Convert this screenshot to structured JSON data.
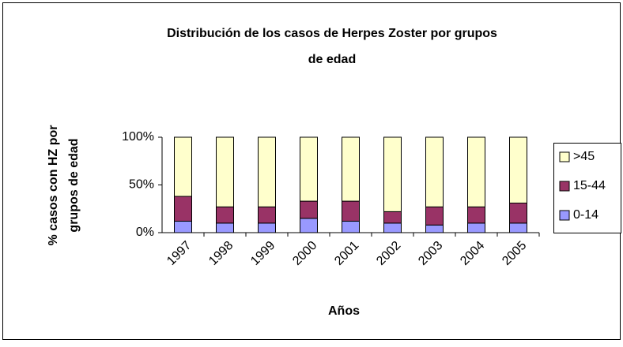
{
  "chart_data": {
    "type": "stacked_bar",
    "title": [
      "Distribución de los casos de Herpes Zoster por grupos",
      "de edad"
    ],
    "x_label": "Años",
    "y_label": [
      "% casos con HZ por",
      "grupos de edad"
    ],
    "categories": [
      "1997",
      "1998",
      "1999",
      "2000",
      "2001",
      "2002",
      "2003",
      "2004",
      "2005"
    ],
    "series": [
      {
        "name": "0-14",
        "color": "#9999ff",
        "values": [
          12,
          10,
          10,
          15,
          12,
          10,
          8,
          10,
          10
        ]
      },
      {
        "name": "15-44",
        "color": "#993366",
        "values": [
          26,
          17,
          17,
          18,
          21,
          12,
          19,
          17,
          21
        ]
      },
      {
        "name": ">45",
        "color": "#ffffcc",
        "values": [
          62,
          73,
          73,
          67,
          67,
          78,
          73,
          73,
          69
        ]
      }
    ],
    "ylim": [
      0,
      100
    ],
    "yticks": [
      {
        "value": 0,
        "label": "0%"
      },
      {
        "value": 50,
        "label": "50%"
      },
      {
        "value": 100,
        "label": "100%"
      }
    ],
    "legend": "right"
  }
}
